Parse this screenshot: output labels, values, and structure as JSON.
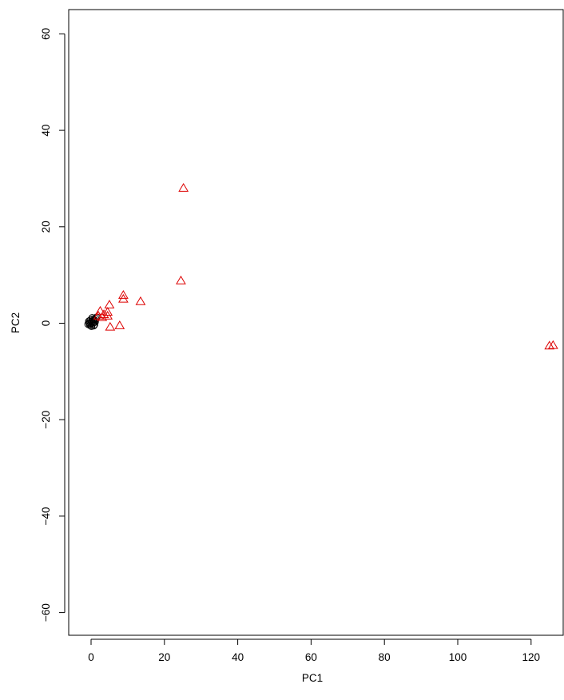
{
  "chart_data": {
    "type": "scatter",
    "title": "",
    "xlabel": "PC1",
    "ylabel": "PC2",
    "xlim": [
      -2,
      128
    ],
    "ylim": [
      -65,
      65
    ],
    "x_ticks": [
      0,
      20,
      40,
      60,
      80,
      100,
      120
    ],
    "y_ticks": [
      -60,
      -40,
      -20,
      0,
      20,
      40,
      60
    ],
    "x_tick_labels": [
      "0",
      "20",
      "40",
      "60",
      "80",
      "100",
      "120"
    ],
    "y_tick_labels": [
      "−60",
      "−40",
      "−20",
      "0",
      "20",
      "40",
      "60"
    ],
    "grid": false,
    "legend": "none",
    "series": [
      {
        "marker": "circle",
        "color": "#000000",
        "points": [
          [
            -0.8,
            -0.2
          ],
          [
            -0.5,
            0.1
          ],
          [
            -0.3,
            -0.4
          ],
          [
            0.0,
            0.0
          ],
          [
            0.2,
            0.3
          ],
          [
            0.4,
            -0.1
          ],
          [
            0.6,
            0.5
          ],
          [
            0.8,
            0.2
          ],
          [
            -0.6,
            0.4
          ],
          [
            0.1,
            -0.6
          ],
          [
            0.5,
            0.8
          ],
          [
            1.0,
            0.6
          ],
          [
            1.2,
            1.0
          ],
          [
            0.9,
            -0.3
          ],
          [
            -0.2,
            0.6
          ],
          [
            0.3,
            1.1
          ],
          [
            1.5,
            1.2
          ],
          [
            0.7,
            -0.5
          ],
          [
            -0.4,
            -0.1
          ],
          [
            1.1,
            0.3
          ]
        ]
      },
      {
        "marker": "triangle",
        "color": "#dd0000",
        "points": [
          [
            2.0,
            1.5
          ],
          [
            2.5,
            2.5
          ],
          [
            3.0,
            1.2
          ],
          [
            3.5,
            1.8
          ],
          [
            4.5,
            2.3
          ],
          [
            4.5,
            1.5
          ],
          [
            5.0,
            3.8
          ],
          [
            5.2,
            -0.8
          ],
          [
            7.8,
            -0.5
          ],
          [
            8.8,
            5.8
          ],
          [
            8.8,
            5.0
          ],
          [
            13.5,
            4.5
          ],
          [
            24.5,
            8.8
          ],
          [
            25.2,
            28.0
          ],
          [
            125.0,
            -4.7
          ],
          [
            126.0,
            -4.6
          ]
        ]
      }
    ]
  }
}
